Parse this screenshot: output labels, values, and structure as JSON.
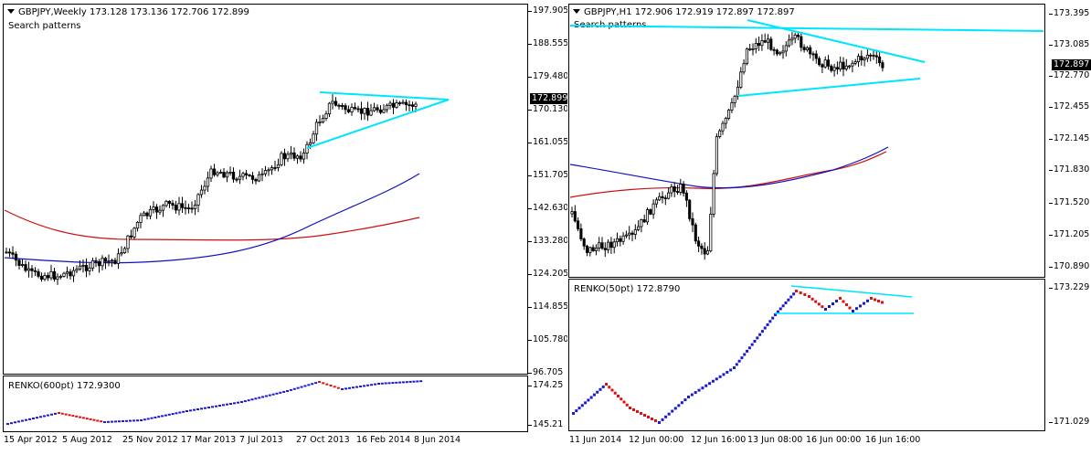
{
  "left": {
    "title": "GBPJPY,Weekly  173.128 173.136 172.706 172.899",
    "subtitle": "Search patterns",
    "price_tag": "172.899",
    "yticks": [
      "197.905",
      "188.555",
      "179.480",
      "170.130",
      "161.055",
      "151.705",
      "142.630",
      "133.280",
      "124.205",
      "114.855",
      "105.780",
      "96.705"
    ],
    "renko_title": "RENKO(600pt) 172.9300",
    "renko_yticks": [
      "174.25",
      "145.21"
    ],
    "xticks": [
      "15 Apr 2012",
      "5 Aug 2012",
      "25 Nov 2012",
      "17 Mar 2013",
      "7 Jul 2013",
      "27 Oct 2013",
      "16 Feb 2014",
      "8 Jun 2014"
    ]
  },
  "right": {
    "title": "GBPJPY,H1  172.906 172.919 172.897 172.897",
    "subtitle": "Search patterns",
    "price_tag": "172.897",
    "yticks": [
      "173.395",
      "173.085",
      "172.770",
      "172.455",
      "172.145",
      "171.830",
      "171.520",
      "171.205",
      "170.890"
    ],
    "renko_title": "RENKO(50pt) 172.8790",
    "renko_yticks": [
      "173.229",
      "171.029"
    ],
    "xticks": [
      "11 Jun 2014",
      "12 Jun 00:00",
      "12 Jun 16:00",
      "13 Jun 08:00",
      "16 Jun 00:00",
      "16 Jun 16:00"
    ]
  },
  "colors": {
    "pattern": "#00e5ff",
    "ma_blue": "#1010c0",
    "ma_red": "#cc1010",
    "renko_up": "#1a1ad0",
    "renko_down": "#e01010",
    "candle": "#000000"
  }
}
